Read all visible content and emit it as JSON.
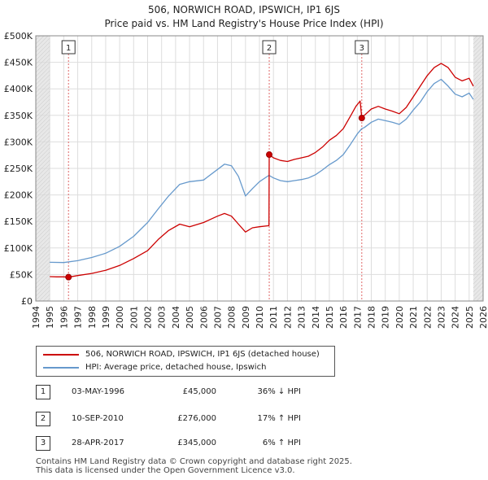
{
  "chart_data": {
    "type": "line",
    "title": "506, NORWICH ROAD, IPSWICH, IP1 6JS",
    "subtitle": "Price paid vs. HM Land Registry's House Price Index (HPI)",
    "xlim": [
      1994,
      2026
    ],
    "ylim": [
      0,
      500000
    ],
    "x_ticks": [
      "1994",
      "1995",
      "1996",
      "1997",
      "1998",
      "1999",
      "2000",
      "2001",
      "2002",
      "2003",
      "2004",
      "2005",
      "2006",
      "2007",
      "2008",
      "2009",
      "2010",
      "2011",
      "2012",
      "2013",
      "2014",
      "2015",
      "2016",
      "2017",
      "2018",
      "2019",
      "2020",
      "2021",
      "2022",
      "2023",
      "2024",
      "2025",
      "2026"
    ],
    "y_ticks": [
      {
        "value": 0,
        "label": "£0"
      },
      {
        "value": 50000,
        "label": "£50K"
      },
      {
        "value": 100000,
        "label": "£100K"
      },
      {
        "value": 150000,
        "label": "£150K"
      },
      {
        "value": 200000,
        "label": "£200K"
      },
      {
        "value": 250000,
        "label": "£250K"
      },
      {
        "value": 300000,
        "label": "£300K"
      },
      {
        "value": 350000,
        "label": "£350K"
      },
      {
        "value": 400000,
        "label": "£400K"
      },
      {
        "value": 450000,
        "label": "£450K"
      },
      {
        "value": 500000,
        "label": "£500K"
      }
    ],
    "shaded_ranges": [
      [
        1994,
        1995.0
      ],
      [
        2025.3,
        2026
      ]
    ],
    "series": [
      {
        "name": "506, NORWICH ROAD, IPSWICH, IP1 6JS (detached house)",
        "color": "#cc0000",
        "points": [
          [
            1995.0,
            46000
          ],
          [
            1995.5,
            45500
          ],
          [
            1996.0,
            45500
          ],
          [
            1996.34,
            45000
          ],
          [
            1997.0,
            48000
          ],
          [
            1998.0,
            52000
          ],
          [
            1999.0,
            58000
          ],
          [
            2000.0,
            67000
          ],
          [
            2001.0,
            80000
          ],
          [
            2002.0,
            95000
          ],
          [
            2002.8,
            117000
          ],
          [
            2003.5,
            133000
          ],
          [
            2004.3,
            145000
          ],
          [
            2005.0,
            140000
          ],
          [
            2006.0,
            148000
          ],
          [
            2007.0,
            160000
          ],
          [
            2007.5,
            165000
          ],
          [
            2008.0,
            160000
          ],
          [
            2008.5,
            145000
          ],
          [
            2009.0,
            130000
          ],
          [
            2009.5,
            138000
          ],
          [
            2010.0,
            140000
          ],
          [
            2010.68,
            142000
          ],
          [
            2010.7,
            276000
          ],
          [
            2011.0,
            270000
          ],
          [
            2011.5,
            265000
          ],
          [
            2012.0,
            263000
          ],
          [
            2012.5,
            267000
          ],
          [
            2013.0,
            270000
          ],
          [
            2013.5,
            273000
          ],
          [
            2014.0,
            280000
          ],
          [
            2014.5,
            290000
          ],
          [
            2015.0,
            303000
          ],
          [
            2015.5,
            312000
          ],
          [
            2016.0,
            325000
          ],
          [
            2016.5,
            348000
          ],
          [
            2016.9,
            367000
          ],
          [
            2017.2,
            377000
          ],
          [
            2017.32,
            345000
          ],
          [
            2017.5,
            350000
          ],
          [
            2018.0,
            362000
          ],
          [
            2018.5,
            367000
          ],
          [
            2019.0,
            362000
          ],
          [
            2019.5,
            358000
          ],
          [
            2020.0,
            353000
          ],
          [
            2020.5,
            365000
          ],
          [
            2021.0,
            385000
          ],
          [
            2021.5,
            405000
          ],
          [
            2022.0,
            425000
          ],
          [
            2022.5,
            440000
          ],
          [
            2023.0,
            448000
          ],
          [
            2023.5,
            440000
          ],
          [
            2024.0,
            422000
          ],
          [
            2024.5,
            415000
          ],
          [
            2025.0,
            420000
          ],
          [
            2025.3,
            405000
          ]
        ]
      },
      {
        "name": "HPI: Average price, detached house, Ipswich",
        "color": "#6699cc",
        "points": [
          [
            1995.0,
            73000
          ],
          [
            1996.0,
            72500
          ],
          [
            1997.0,
            76000
          ],
          [
            1998.0,
            82000
          ],
          [
            1999.0,
            90000
          ],
          [
            2000.0,
            103000
          ],
          [
            2001.0,
            122000
          ],
          [
            2002.0,
            148000
          ],
          [
            2002.8,
            175000
          ],
          [
            2003.5,
            198000
          ],
          [
            2004.3,
            220000
          ],
          [
            2005.0,
            225000
          ],
          [
            2006.0,
            228000
          ],
          [
            2007.0,
            248000
          ],
          [
            2007.5,
            258000
          ],
          [
            2008.0,
            255000
          ],
          [
            2008.5,
            235000
          ],
          [
            2009.0,
            198000
          ],
          [
            2009.5,
            212000
          ],
          [
            2010.0,
            225000
          ],
          [
            2010.68,
            237000
          ],
          [
            2011.0,
            232000
          ],
          [
            2011.5,
            227000
          ],
          [
            2012.0,
            225000
          ],
          [
            2012.5,
            227000
          ],
          [
            2013.0,
            229000
          ],
          [
            2013.5,
            232000
          ],
          [
            2014.0,
            238000
          ],
          [
            2014.5,
            247000
          ],
          [
            2015.0,
            257000
          ],
          [
            2015.5,
            265000
          ],
          [
            2016.0,
            276000
          ],
          [
            2016.5,
            295000
          ],
          [
            2017.0,
            315000
          ],
          [
            2017.32,
            325000
          ],
          [
            2017.5,
            327000
          ],
          [
            2018.0,
            337000
          ],
          [
            2018.5,
            343000
          ],
          [
            2019.0,
            340000
          ],
          [
            2019.5,
            337000
          ],
          [
            2020.0,
            333000
          ],
          [
            2020.5,
            343000
          ],
          [
            2021.0,
            360000
          ],
          [
            2021.5,
            375000
          ],
          [
            2022.0,
            395000
          ],
          [
            2022.5,
            410000
          ],
          [
            2023.0,
            418000
          ],
          [
            2023.5,
            405000
          ],
          [
            2024.0,
            390000
          ],
          [
            2024.5,
            385000
          ],
          [
            2025.0,
            392000
          ],
          [
            2025.3,
            380000
          ]
        ]
      }
    ],
    "sales": [
      {
        "id": "1",
        "x": 1996.34,
        "y": 45000
      },
      {
        "id": "2",
        "x": 2010.7,
        "y": 276000
      },
      {
        "id": "3",
        "x": 2017.32,
        "y": 345000
      }
    ]
  },
  "legend": {
    "items": [
      {
        "label": "506, NORWICH ROAD, IPSWICH, IP1 6JS (detached house)",
        "color": "#cc0000"
      },
      {
        "label": "HPI: Average price, detached house, Ipswich",
        "color": "#6699cc"
      }
    ]
  },
  "sales_table": [
    {
      "num": "1",
      "date": "03-MAY-1996",
      "price": "£45,000",
      "hpi": "36% ↓ HPI"
    },
    {
      "num": "2",
      "date": "10-SEP-2010",
      "price": "£276,000",
      "hpi": "17% ↑ HPI"
    },
    {
      "num": "3",
      "date": "28-APR-2017",
      "price": "£345,000",
      "hpi": "6% ↑ HPI"
    }
  ],
  "footer": {
    "line1": "Contains HM Land Registry data © Crown copyright and database right 2025.",
    "line2": "This data is licensed under the Open Government Licence v3.0."
  }
}
